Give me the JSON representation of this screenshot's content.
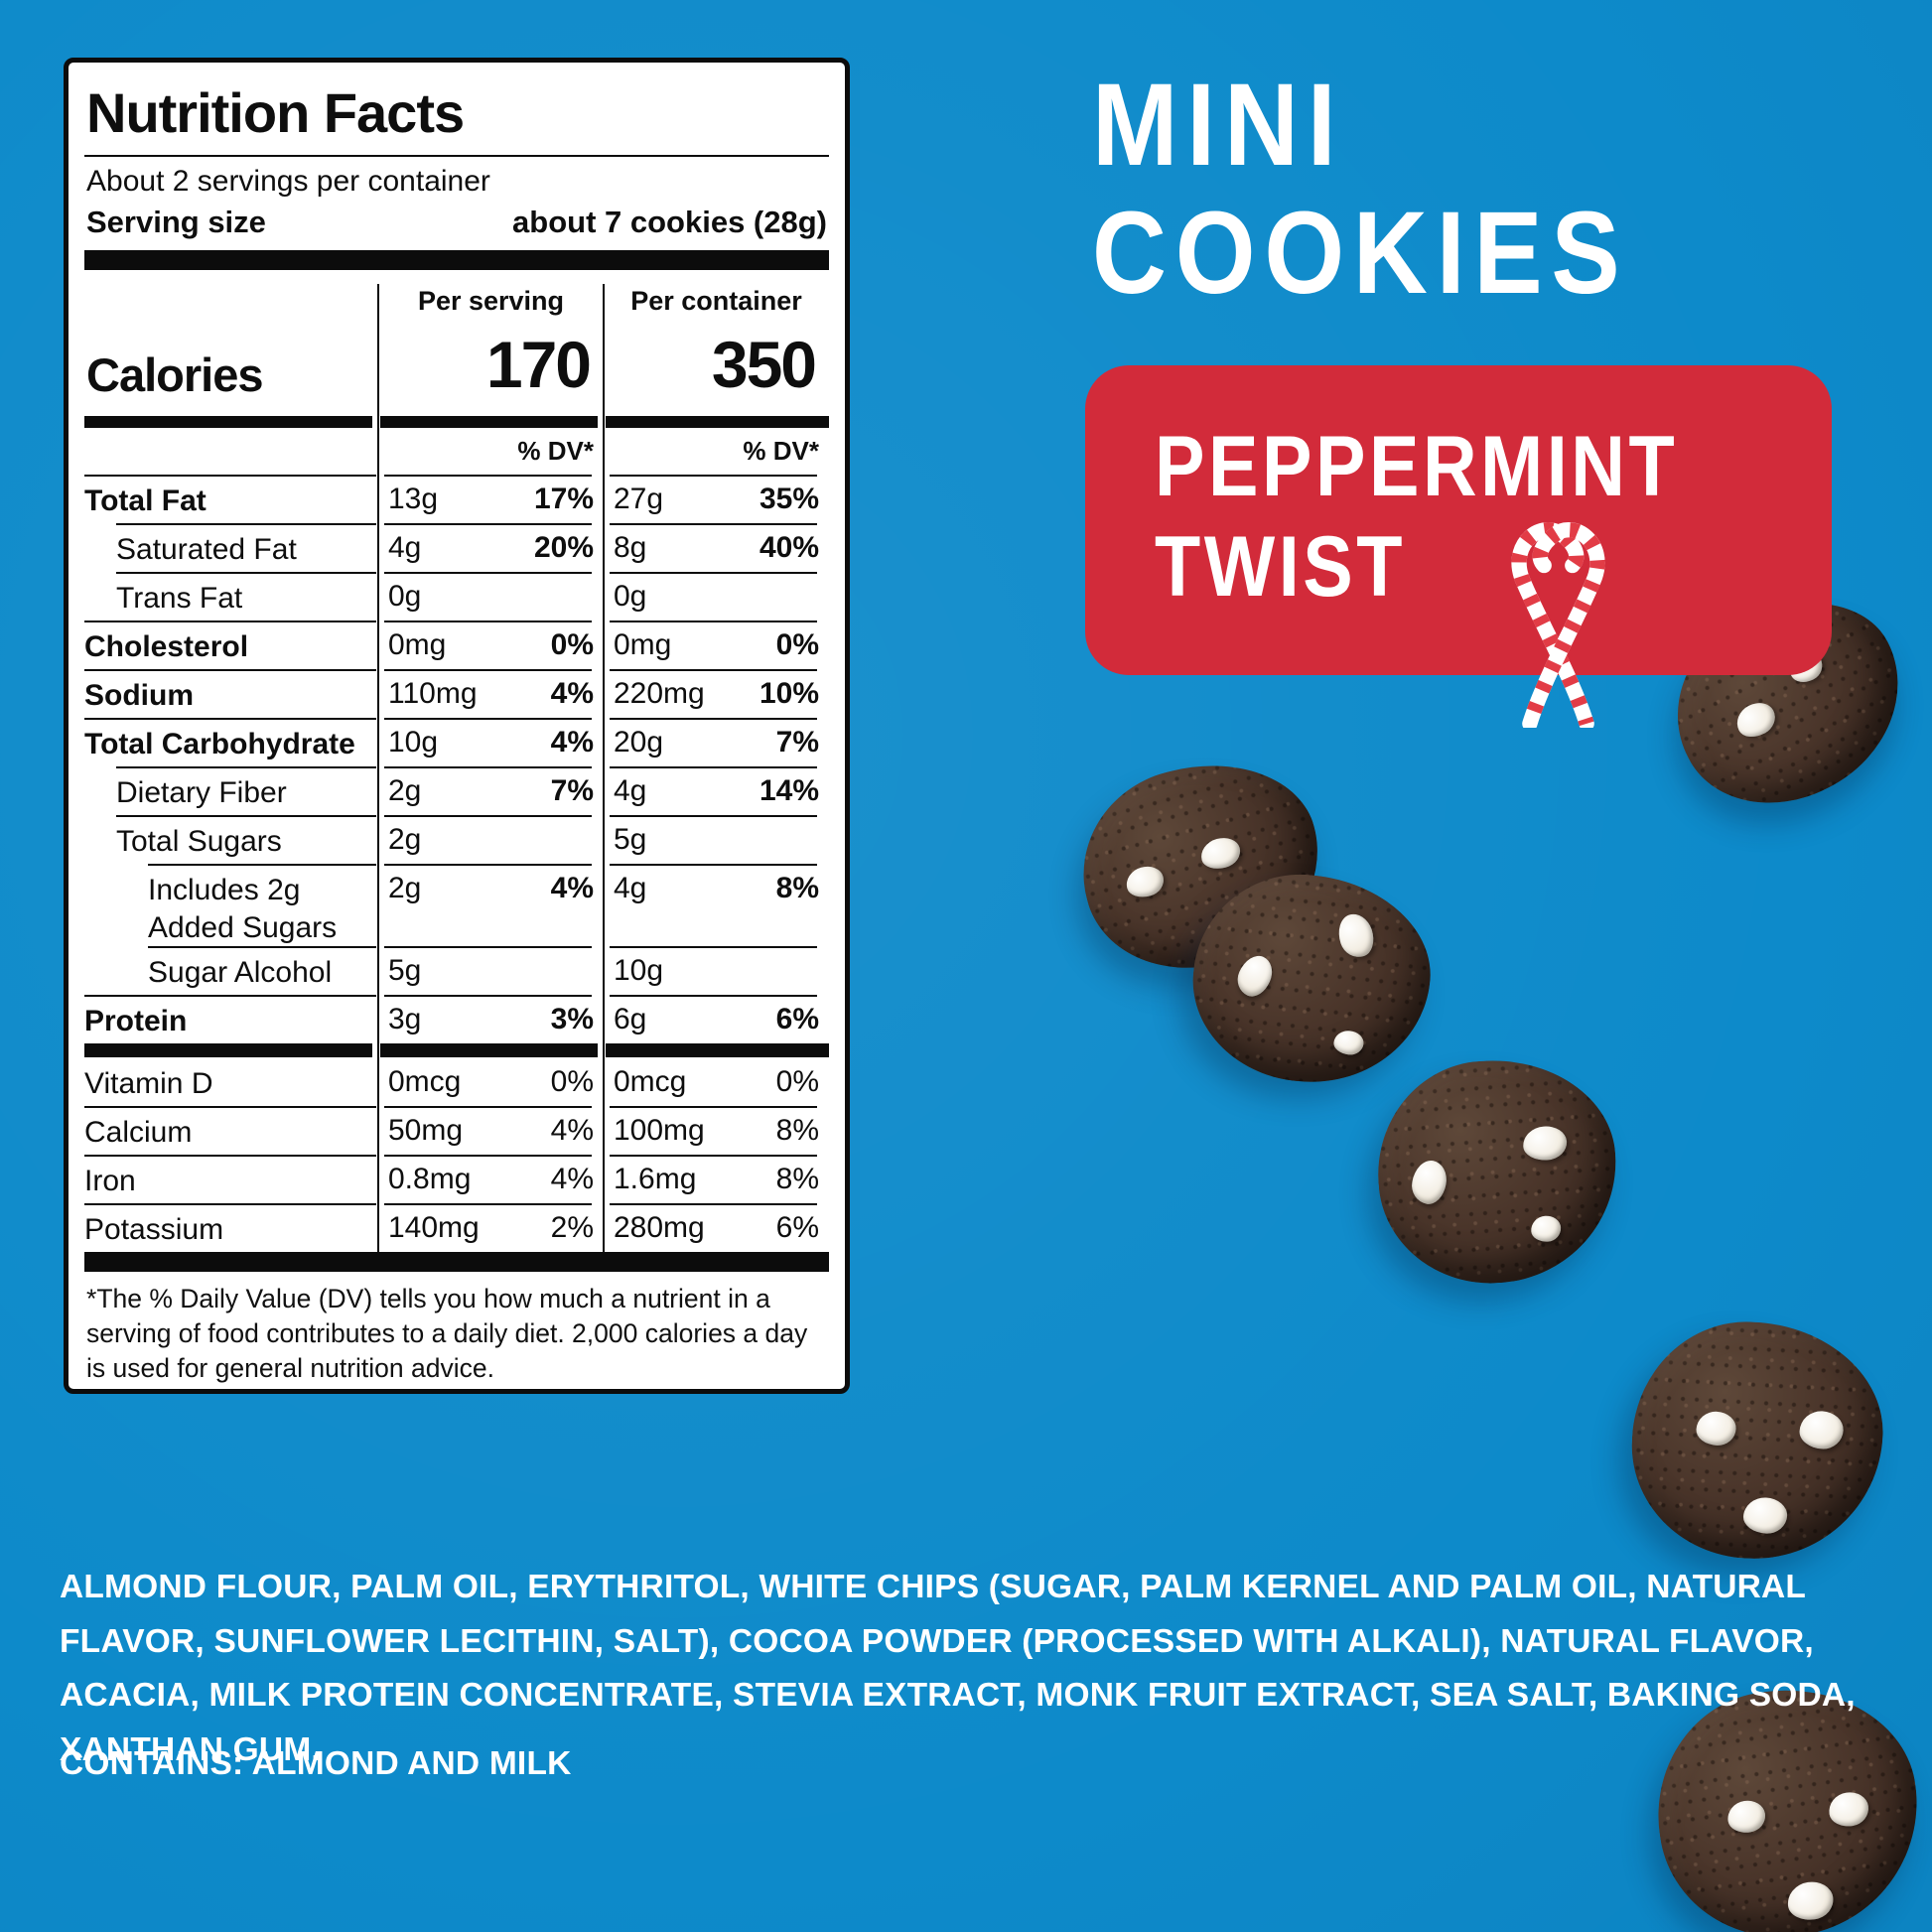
{
  "colors": {
    "background_blue": "#0d8aca",
    "badge_red": "#d22b3a",
    "candy_cane_red": "#e23c46",
    "label_black": "#0c0c0c",
    "text_white": "#ffffff"
  },
  "product": {
    "title_line1": "MINI",
    "title_line2": "COOKIES",
    "flavor_line1": "PEPPERMINT",
    "flavor_line2": "TWIST"
  },
  "nutrition_label": {
    "title": "Nutrition Facts",
    "servings_per_container": "About 2 servings per container",
    "serving_size_label": "Serving size",
    "serving_size_value": "about 7 cookies (28g)",
    "col_headers": {
      "per_serving": "Per serving",
      "per_container": "Per container"
    },
    "calories_label": "Calories",
    "calories": {
      "per_serving": "170",
      "per_container": "350"
    },
    "dv_header": "% DV*",
    "rows": [
      {
        "name": "Total Fat",
        "bold": true,
        "indent": 0,
        "ps_amt": "13g",
        "ps_dv": "17%",
        "pc_amt": "27g",
        "pc_dv": "35%",
        "dv_bold": true
      },
      {
        "name": "Saturated Fat",
        "bold": false,
        "indent": 1,
        "ps_amt": "4g",
        "ps_dv": "20%",
        "pc_amt": "8g",
        "pc_dv": "40%",
        "dv_bold": true
      },
      {
        "name": "Trans Fat",
        "bold": false,
        "indent": 1,
        "ps_amt": "0g",
        "ps_dv": "",
        "pc_amt": "0g",
        "pc_dv": "",
        "dv_bold": true
      },
      {
        "name": "Cholesterol",
        "bold": true,
        "indent": 0,
        "ps_amt": "0mg",
        "ps_dv": "0%",
        "pc_amt": "0mg",
        "pc_dv": "0%",
        "dv_bold": true
      },
      {
        "name": "Sodium",
        "bold": true,
        "indent": 0,
        "ps_amt": "110mg",
        "ps_dv": "4%",
        "pc_amt": "220mg",
        "pc_dv": "10%",
        "dv_bold": true
      },
      {
        "name": "Total Carbohydrate",
        "bold": true,
        "indent": 0,
        "ps_amt": "10g",
        "ps_dv": "4%",
        "pc_amt": "20g",
        "pc_dv": "7%",
        "dv_bold": true
      },
      {
        "name": "Dietary Fiber",
        "bold": false,
        "indent": 1,
        "ps_amt": "2g",
        "ps_dv": "7%",
        "pc_amt": "4g",
        "pc_dv": "14%",
        "dv_bold": true
      },
      {
        "name": "Total Sugars",
        "bold": false,
        "indent": 1,
        "ps_amt": "2g",
        "ps_dv": "",
        "pc_amt": "5g",
        "pc_dv": "",
        "dv_bold": true
      },
      {
        "name": "Includes 2g Added Sugars",
        "bold": false,
        "indent": 2,
        "ps_amt": "2g",
        "ps_dv": "4%",
        "pc_amt": "4g",
        "pc_dv": "8%",
        "dv_bold": true
      },
      {
        "name": "Sugar Alcohol",
        "bold": false,
        "indent": 2,
        "ps_amt": "5g",
        "ps_dv": "",
        "pc_amt": "10g",
        "pc_dv": "",
        "dv_bold": true
      },
      {
        "name": "Protein",
        "bold": true,
        "indent": 0,
        "ps_amt": "3g",
        "ps_dv": "3%",
        "pc_amt": "6g",
        "pc_dv": "6%",
        "dv_bold": true
      }
    ],
    "micro_rows": [
      {
        "name": "Vitamin D",
        "bold": false,
        "indent": 0,
        "ps_amt": "0mcg",
        "ps_dv": "0%",
        "pc_amt": "0mcg",
        "pc_dv": "0%",
        "dv_bold": false
      },
      {
        "name": "Calcium",
        "bold": false,
        "indent": 0,
        "ps_amt": "50mg",
        "ps_dv": "4%",
        "pc_amt": "100mg",
        "pc_dv": "8%",
        "dv_bold": false
      },
      {
        "name": "Iron",
        "bold": false,
        "indent": 0,
        "ps_amt": "0.8mg",
        "ps_dv": "4%",
        "pc_amt": "1.6mg",
        "pc_dv": "8%",
        "dv_bold": false
      },
      {
        "name": "Potassium",
        "bold": false,
        "indent": 0,
        "ps_amt": "140mg",
        "ps_dv": "2%",
        "pc_amt": "280mg",
        "pc_dv": "6%",
        "dv_bold": false
      }
    ],
    "footnote": "*The % Daily Value (DV) tells you how much a nutrient in a serving of food contributes to a daily diet. 2,000 calories a day is used for general nutrition advice."
  },
  "ingredients": "ALMOND FLOUR, PALM OIL, ERYTHRITOL, WHITE CHIPS (SUGAR, PALM KERNEL AND PALM OIL, NATURAL FLAVOR, SUNFLOWER LECITHIN, SALT), COCOA POWDER (PROCESSED WITH ALKALI), NATURAL FLAVOR, ACACIA, MILK PROTEIN CONCENTRATE, STEVIA EXTRACT, MONK FRUIT EXTRACT, SEA SALT, BAKING SODA, XANTHAN GUM.",
  "contains": "CONTAINS: ALMOND AND MILK"
}
